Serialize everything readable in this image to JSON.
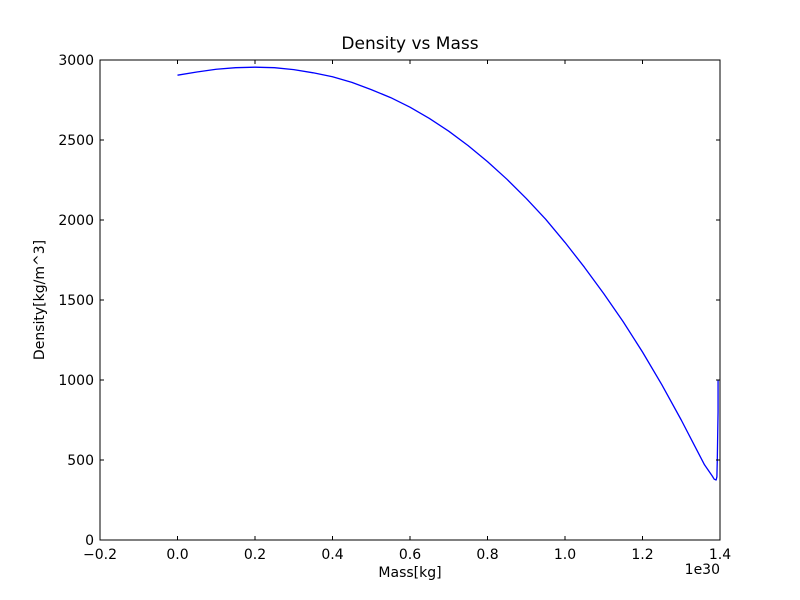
{
  "chart_data": {
    "type": "line",
    "title": "Density vs Mass",
    "xlabel": "Mass[kg]",
    "ylabel": "Density[kg/m^3]",
    "x_offset_label": "1e30",
    "xlim": [
      -0.2,
      1.4
    ],
    "ylim": [
      0,
      3000
    ],
    "x_ticks": [
      -0.2,
      0.0,
      0.2,
      0.4,
      0.6,
      0.8,
      1.0,
      1.2,
      1.4
    ],
    "x_tick_labels": [
      "−0.2",
      "0.0",
      "0.2",
      "0.4",
      "0.6",
      "0.8",
      "1.0",
      "1.2",
      "1.4"
    ],
    "y_ticks": [
      0,
      500,
      1000,
      1500,
      2000,
      2500,
      3000
    ],
    "y_tick_labels": [
      "0",
      "500",
      "1000",
      "1500",
      "2000",
      "2500",
      "3000"
    ],
    "grid": false,
    "series": [
      {
        "color": "#0000ff",
        "x": [
          0.0,
          0.05,
          0.1,
          0.15,
          0.2,
          0.25,
          0.3,
          0.35,
          0.4,
          0.45,
          0.5,
          0.55,
          0.6,
          0.65,
          0.7,
          0.75,
          0.8,
          0.85,
          0.9,
          0.95,
          1.0,
          1.05,
          1.1,
          1.15,
          1.2,
          1.25,
          1.3,
          1.33,
          1.36,
          1.38,
          1.385,
          1.39,
          1.392,
          1.393,
          1.395,
          1.395
        ],
        "y": [
          2905,
          2925,
          2942,
          2952,
          2955,
          2952,
          2940,
          2920,
          2895,
          2860,
          2815,
          2765,
          2705,
          2635,
          2555,
          2465,
          2365,
          2255,
          2135,
          2005,
          1860,
          1705,
          1540,
          1365,
          1175,
          970,
          750,
          610,
          470,
          400,
          380,
          375,
          395,
          500,
          800,
          1000
        ]
      }
    ]
  }
}
